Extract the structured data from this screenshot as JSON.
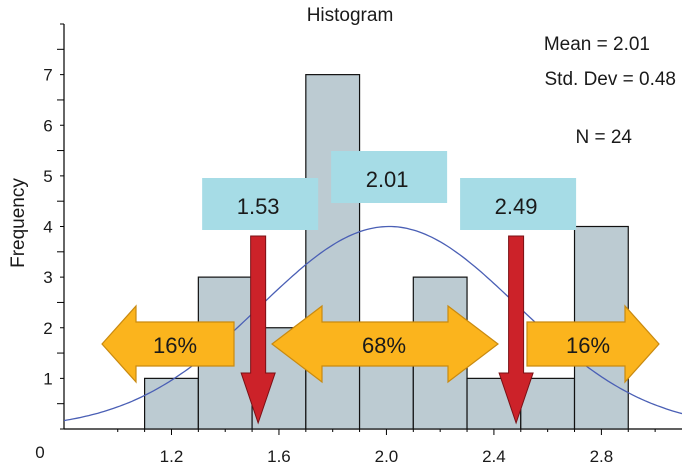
{
  "chart_data": {
    "type": "bar",
    "title": "Histogram",
    "xlabel": "",
    "ylabel": "Frequency",
    "bin_edges": [
      1.1,
      1.3,
      1.5,
      1.7,
      1.9,
      2.1,
      2.3,
      2.5,
      2.7,
      2.9
    ],
    "values": [
      1,
      3,
      2,
      7,
      2,
      3,
      1,
      1,
      4
    ],
    "xlim": [
      0.8,
      3.1
    ],
    "ylim": [
      0,
      8
    ],
    "x_ticks": [
      "1.2",
      "1.6",
      "2.0",
      "2.4",
      "2.8"
    ],
    "y_ticks": [
      "0",
      "1",
      "2",
      "3",
      "4",
      "5",
      "6",
      "7"
    ],
    "normal_curve": {
      "mean": 2.01,
      "std": 0.48,
      "peak": 4
    },
    "stats": {
      "mean": "Mean = 2.01",
      "std": "Std. Dev = 0.48",
      "n": "N = 24"
    },
    "value_boxes": [
      {
        "label": "1.53",
        "x": 1.53
      },
      {
        "label": "2.01",
        "x": 2.01
      },
      {
        "label": "2.49",
        "x": 2.49
      }
    ],
    "down_arrows": [
      1.53,
      2.49
    ],
    "percent_labels": {
      "left": "16%",
      "center": "68%",
      "right": "16%"
    },
    "colors": {
      "bar_fill": "#bccbd2",
      "bar_stroke": "#111111",
      "curve": "#4a5fb5",
      "value_box": "#a6dce6",
      "orange_arrow": "#fbb41d",
      "orange_stroke": "#c98a10",
      "red_arrow": "#cc2229"
    }
  }
}
